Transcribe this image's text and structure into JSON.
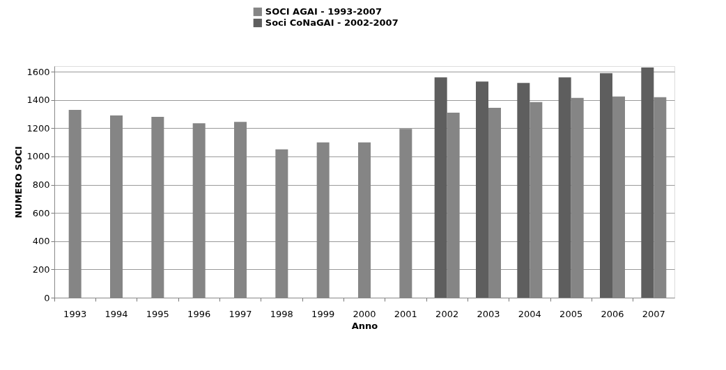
{
  "chart_data": {
    "type": "bar",
    "xlabel": "Anno",
    "ylabel": "NUMERO SOCI",
    "categories": [
      "1993",
      "1994",
      "1995",
      "1996",
      "1997",
      "1998",
      "1999",
      "2000",
      "2001",
      "2002",
      "2003",
      "2004",
      "2005",
      "2006",
      "2007"
    ],
    "series": [
      {
        "name": "SOCI AGAI - 1993-2007",
        "color": "#858585",
        "values": [
          1330,
          1290,
          1280,
          1235,
          1245,
          1050,
          1100,
          1100,
          1195,
          1310,
          1345,
          1385,
          1415,
          1425,
          1420
        ]
      },
      {
        "name": "Soci CoNaGAI - 2002-2007",
        "color": "#5e5e5e",
        "values": [
          null,
          null,
          null,
          null,
          null,
          null,
          null,
          null,
          null,
          1560,
          1530,
          1520,
          1560,
          1590,
          1630
        ]
      }
    ],
    "ylim": [
      0,
      1640
    ],
    "yticks": [
      0,
      200,
      400,
      600,
      800,
      1000,
      1200,
      1400,
      1600
    ],
    "grid": "y",
    "legend": "top"
  }
}
